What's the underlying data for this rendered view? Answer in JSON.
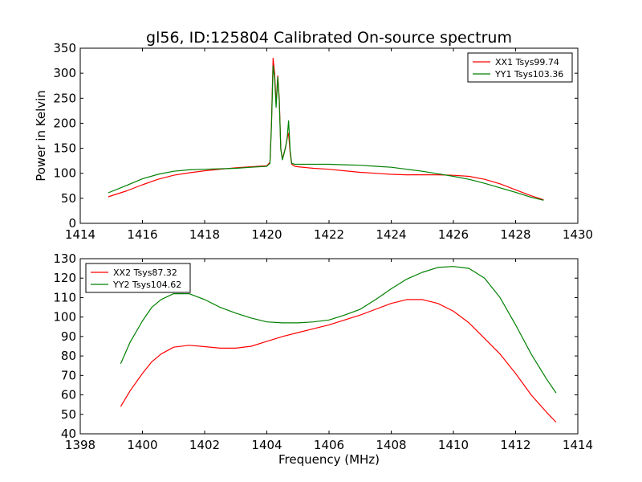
{
  "figure": {
    "title": "gl56, ID:125804 Calibrated On-source spectrum"
  },
  "chart_data": [
    {
      "type": "line",
      "ylabel": "Power in Kelvin",
      "xlabel": "",
      "xlim": [
        1414,
        1430
      ],
      "ylim": [
        0,
        350
      ],
      "xticks": [
        1414,
        1416,
        1418,
        1420,
        1422,
        1424,
        1426,
        1428,
        1430
      ],
      "yticks": [
        0,
        50,
        100,
        150,
        200,
        250,
        300,
        350
      ],
      "legend_position": "top-right",
      "series": [
        {
          "name": "XX1 Tsys99.74",
          "color": "#ff0000",
          "x": [
            1414.9,
            1415.5,
            1416.0,
            1416.5,
            1417.0,
            1417.5,
            1418.0,
            1418.5,
            1419.0,
            1419.5,
            1420.0,
            1420.1,
            1420.15,
            1420.2,
            1420.25,
            1420.3,
            1420.35,
            1420.4,
            1420.45,
            1420.5,
            1420.55,
            1420.6,
            1420.65,
            1420.7,
            1420.75,
            1420.8,
            1420.9,
            1421.0,
            1421.5,
            1422.0,
            1422.5,
            1423.0,
            1423.5,
            1424.0,
            1424.5,
            1425.0,
            1425.5,
            1426.0,
            1426.5,
            1427.0,
            1427.5,
            1428.0,
            1428.5,
            1428.9
          ],
          "y": [
            53,
            65,
            77,
            88,
            96,
            101,
            105,
            108,
            111,
            113,
            115,
            122,
            200,
            330,
            300,
            240,
            295,
            250,
            150,
            128,
            140,
            150,
            170,
            180,
            140,
            118,
            114,
            113,
            110,
            108,
            105,
            102,
            100,
            98,
            97,
            97,
            97,
            96,
            94,
            88,
            79,
            67,
            55,
            47
          ]
        },
        {
          "name": "YY1 Tsys103.36",
          "color": "#008000",
          "x": [
            1414.9,
            1415.5,
            1416.0,
            1416.5,
            1417.0,
            1417.5,
            1418.0,
            1418.5,
            1419.0,
            1419.5,
            1420.0,
            1420.1,
            1420.15,
            1420.2,
            1420.25,
            1420.3,
            1420.35,
            1420.4,
            1420.45,
            1420.5,
            1420.55,
            1420.6,
            1420.65,
            1420.7,
            1420.75,
            1420.8,
            1420.9,
            1421.0,
            1421.5,
            1422.0,
            1422.5,
            1423.0,
            1423.5,
            1424.0,
            1424.5,
            1425.0,
            1425.5,
            1426.0,
            1426.5,
            1427.0,
            1427.5,
            1428.0,
            1428.5,
            1428.9
          ],
          "y": [
            61,
            76,
            89,
            98,
            104,
            107,
            108,
            109,
            110,
            112,
            114,
            120,
            195,
            315,
            290,
            232,
            292,
            245,
            148,
            127,
            138,
            152,
            168,
            205,
            145,
            120,
            118,
            118,
            118,
            118,
            117,
            116,
            114,
            112,
            108,
            104,
            99,
            94,
            88,
            80,
            71,
            62,
            52,
            46
          ]
        }
      ]
    },
    {
      "type": "line",
      "ylabel": "",
      "xlabel": "Frequency (MHz)",
      "xlim": [
        1398,
        1414
      ],
      "ylim": [
        40,
        130
      ],
      "xticks": [
        1398,
        1400,
        1402,
        1404,
        1406,
        1408,
        1410,
        1412,
        1414
      ],
      "yticks": [
        40,
        50,
        60,
        70,
        80,
        90,
        100,
        110,
        120,
        130
      ],
      "legend_position": "top-left",
      "series": [
        {
          "name": "XX2 Tsys87.32",
          "color": "#ff0000",
          "x": [
            1399.3,
            1399.6,
            1400.0,
            1400.3,
            1400.6,
            1401.0,
            1401.5,
            1402.0,
            1402.5,
            1403.0,
            1403.5,
            1404.0,
            1404.5,
            1405.0,
            1405.5,
            1406.0,
            1406.5,
            1407.0,
            1407.5,
            1408.0,
            1408.5,
            1409.0,
            1409.5,
            1410.0,
            1410.5,
            1411.0,
            1411.5,
            1412.0,
            1412.5,
            1413.0,
            1413.3
          ],
          "y": [
            54,
            62,
            71,
            77,
            81,
            84.5,
            85.5,
            84.8,
            84,
            84,
            85,
            87.5,
            90,
            92,
            94,
            96,
            98.5,
            101,
            104,
            107,
            109,
            109,
            107,
            103,
            97,
            89,
            81,
            71,
            60,
            51,
            46
          ]
        },
        {
          "name": "YY2 Tsys104.62",
          "color": "#008000",
          "x": [
            1399.3,
            1399.6,
            1400.0,
            1400.3,
            1400.6,
            1401.0,
            1401.5,
            1402.0,
            1402.5,
            1403.0,
            1403.5,
            1404.0,
            1404.5,
            1405.0,
            1405.5,
            1406.0,
            1406.5,
            1407.0,
            1407.5,
            1408.0,
            1408.5,
            1409.0,
            1409.5,
            1410.0,
            1410.5,
            1411.0,
            1411.5,
            1412.0,
            1412.5,
            1413.0,
            1413.3
          ],
          "y": [
            76,
            87,
            98,
            105,
            109,
            112,
            112,
            109,
            105,
            102,
            99.5,
            97.5,
            97,
            97,
            97.5,
            98.5,
            101,
            104,
            109,
            114.5,
            119.5,
            123,
            125.5,
            126,
            125,
            120,
            110,
            96,
            81,
            68,
            61
          ]
        }
      ]
    }
  ]
}
